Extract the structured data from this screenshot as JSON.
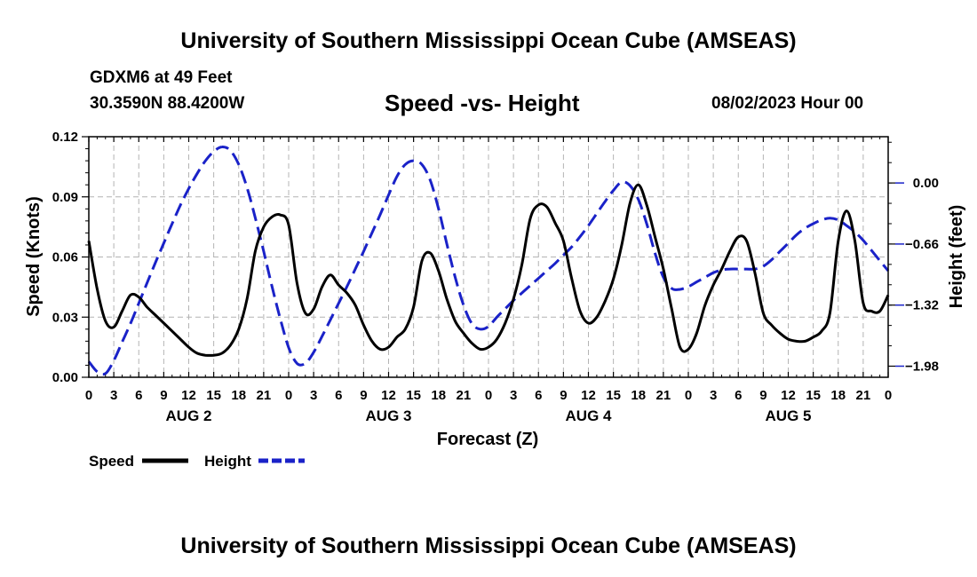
{
  "header": {
    "title": "University of Southern Mississippi Ocean Cube (AMSEAS)",
    "station": "GDXM6 at 49 Feet",
    "coordinates": "30.3590N  88.4200W",
    "chart_title": "Speed -vs- Height",
    "date_label": "08/02/2023 Hour 00"
  },
  "footer": {
    "title": "University of Southern Mississippi Ocean Cube (AMSEAS)"
  },
  "colors": {
    "speed": "#000000",
    "height": "#1a22c8",
    "grid": "#b4b4b4"
  },
  "chart_data": {
    "type": "line",
    "title": "Speed -vs- Height",
    "xlabel": "Forecast (Z)",
    "ylabel": "Speed (Knots)",
    "y2label": "Height (feet)",
    "xlim": [
      0,
      96
    ],
    "ylim": [
      0,
      0.12
    ],
    "y2lim": [
      -2.1,
      0.5
    ],
    "x_tick_labels": [
      "0",
      "3",
      "6",
      "9",
      "12",
      "15",
      "18",
      "21",
      "0",
      "3",
      "6",
      "9",
      "12",
      "15",
      "18",
      "21",
      "0",
      "3",
      "6",
      "9",
      "12",
      "15",
      "18",
      "21",
      "0",
      "3",
      "6",
      "9",
      "12",
      "15",
      "18",
      "21",
      "0"
    ],
    "day_labels": [
      {
        "label": "AUG 2",
        "x": 12
      },
      {
        "label": "AUG 3",
        "x": 36
      },
      {
        "label": "AUG 4",
        "x": 60
      },
      {
        "label": "AUG 5",
        "x": 84
      }
    ],
    "y_ticks": [
      "0.00",
      "0.03",
      "0.06",
      "0.09",
      "0.12"
    ],
    "y2_ticks": [
      "0.00",
      "-0.66",
      "-1.32",
      "-1.98"
    ],
    "legend": [
      {
        "name": "Speed",
        "style": "solid"
      },
      {
        "name": "Height",
        "style": "dashed"
      }
    ],
    "series": [
      {
        "name": "Speed",
        "axis": "left",
        "x": [
          0,
          1,
          2,
          3,
          4,
          5,
          6,
          7,
          8,
          9,
          10,
          11,
          12,
          13,
          14,
          15,
          16,
          17,
          18,
          19,
          20,
          21,
          22,
          23,
          24,
          25,
          26,
          27,
          28,
          29,
          30,
          31,
          32,
          33,
          34,
          35,
          36,
          37,
          38,
          39,
          40,
          41,
          42,
          43,
          44,
          45,
          46,
          47,
          48,
          49,
          50,
          51,
          52,
          53,
          54,
          55,
          56,
          57,
          58,
          59,
          60,
          61,
          62,
          63,
          64,
          65,
          66,
          67,
          68,
          69,
          70,
          71,
          72,
          73,
          74,
          75,
          76,
          77,
          78,
          79,
          80,
          81,
          82,
          83,
          84,
          85,
          86,
          87,
          88,
          89,
          90,
          91,
          92,
          93,
          94,
          95,
          96
        ],
        "values": [
          0.068,
          0.044,
          0.028,
          0.025,
          0.033,
          0.041,
          0.04,
          0.035,
          0.031,
          0.027,
          0.023,
          0.019,
          0.015,
          0.012,
          0.011,
          0.011,
          0.012,
          0.016,
          0.024,
          0.039,
          0.063,
          0.075,
          0.08,
          0.081,
          0.076,
          0.047,
          0.032,
          0.034,
          0.045,
          0.051,
          0.046,
          0.042,
          0.036,
          0.026,
          0.018,
          0.014,
          0.015,
          0.02,
          0.024,
          0.035,
          0.058,
          0.062,
          0.053,
          0.039,
          0.028,
          0.022,
          0.017,
          0.014,
          0.015,
          0.019,
          0.027,
          0.039,
          0.056,
          0.079,
          0.086,
          0.085,
          0.077,
          0.068,
          0.049,
          0.033,
          0.027,
          0.03,
          0.038,
          0.049,
          0.066,
          0.087,
          0.096,
          0.086,
          0.07,
          0.054,
          0.034,
          0.015,
          0.014,
          0.022,
          0.036,
          0.046,
          0.054,
          0.063,
          0.07,
          0.068,
          0.052,
          0.032,
          0.026,
          0.022,
          0.019,
          0.018,
          0.018,
          0.02,
          0.023,
          0.032,
          0.068,
          0.083,
          0.068,
          0.037,
          0.033,
          0.033,
          0.041
        ]
      },
      {
        "name": "Height",
        "axis": "right",
        "x": [
          0,
          1,
          2,
          3,
          4,
          5,
          6,
          7,
          8,
          9,
          10,
          11,
          12,
          13,
          14,
          15,
          16,
          17,
          18,
          19,
          20,
          21,
          22,
          23,
          24,
          25,
          26,
          27,
          28,
          29,
          30,
          31,
          32,
          33,
          34,
          35,
          36,
          37,
          38,
          39,
          40,
          41,
          42,
          43,
          44,
          45,
          46,
          47,
          48,
          49,
          50,
          51,
          52,
          53,
          54,
          55,
          56,
          57,
          58,
          59,
          60,
          61,
          62,
          63,
          64,
          65,
          66,
          67,
          68,
          69,
          70,
          71,
          72,
          73,
          74,
          75,
          76,
          77,
          78,
          79,
          80,
          81,
          82,
          83,
          84,
          85,
          86,
          87,
          88,
          89,
          90,
          91,
          92,
          93,
          94,
          95,
          96
        ],
        "values": [
          -1.93,
          -2.04,
          -2.06,
          -1.92,
          -1.72,
          -1.52,
          -1.3,
          -1.08,
          -0.86,
          -0.65,
          -0.44,
          -0.24,
          -0.06,
          0.1,
          0.24,
          0.34,
          0.39,
          0.35,
          0.2,
          -0.05,
          -0.38,
          -0.74,
          -1.12,
          -1.47,
          -1.78,
          -1.95,
          -1.95,
          -1.83,
          -1.66,
          -1.48,
          -1.3,
          -1.12,
          -0.93,
          -0.74,
          -0.54,
          -0.34,
          -0.13,
          0.07,
          0.2,
          0.24,
          0.2,
          0.03,
          -0.28,
          -0.66,
          -1.02,
          -1.32,
          -1.52,
          -1.58,
          -1.55,
          -1.45,
          -1.36,
          -1.27,
          -1.19,
          -1.11,
          -1.03,
          -0.95,
          -0.87,
          -0.78,
          -0.69,
          -0.58,
          -0.46,
          -0.33,
          -0.2,
          -0.08,
          0.01,
          -0.03,
          -0.18,
          -0.44,
          -0.76,
          -1.02,
          -1.14,
          -1.15,
          -1.12,
          -1.07,
          -1.02,
          -0.97,
          -0.94,
          -0.93,
          -0.93,
          -0.93,
          -0.93,
          -0.9,
          -0.83,
          -0.74,
          -0.65,
          -0.56,
          -0.49,
          -0.44,
          -0.4,
          -0.38,
          -0.4,
          -0.46,
          -0.53,
          -0.62,
          -0.73,
          -0.84,
          -0.95
        ]
      }
    ]
  }
}
